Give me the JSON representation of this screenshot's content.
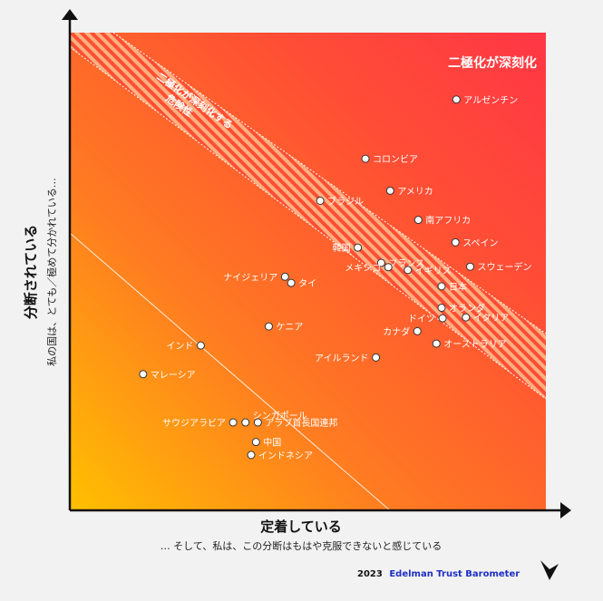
{
  "chart_data": {
    "type": "scatter",
    "title": "",
    "xlabel": "定着している",
    "x_sublabel": "… そして、私は、この分断はもはや克服できないと感じている",
    "ylabel": "分断されている",
    "y_sublabel": "私の国は、とても／極めて分かれている…",
    "xlim": [
      0,
      100
    ],
    "ylim": [
      0,
      100
    ],
    "grid": false,
    "zones": {
      "severe": "二極化が深刻化",
      "band_line1": "二極化が深刻化する",
      "band_line2": "危険性"
    },
    "points": [
      {
        "name": "アルゼンチン",
        "x": 81.2,
        "y": 86.0
      },
      {
        "name": "コロンビア",
        "x": 62.1,
        "y": 73.6
      },
      {
        "name": "アメリカ",
        "x": 67.3,
        "y": 66.9
      },
      {
        "name": "ブラジル",
        "x": 52.6,
        "y": 64.8
      },
      {
        "name": "南アフリカ",
        "x": 73.2,
        "y": 60.8
      },
      {
        "name": "スペイン",
        "x": 81.0,
        "y": 56.1
      },
      {
        "name": "韓国",
        "x": 60.5,
        "y": 55.0
      },
      {
        "name": "フランス",
        "x": 65.4,
        "y": 51.8
      },
      {
        "name": "メキシコ",
        "x": 66.9,
        "y": 50.9
      },
      {
        "name": "スウェーデン",
        "x": 84.1,
        "y": 51.0
      },
      {
        "name": "イギリス",
        "x": 71.0,
        "y": 50.3
      },
      {
        "name": "ナイジェリア",
        "x": 45.2,
        "y": 48.9
      },
      {
        "name": "タイ",
        "x": 46.5,
        "y": 47.6
      },
      {
        "name": "日本",
        "x": 78.1,
        "y": 46.9
      },
      {
        "name": "オランダ",
        "x": 78.1,
        "y": 42.4
      },
      {
        "name": "ドイツ",
        "x": 78.3,
        "y": 40.2
      },
      {
        "name": "イタリア",
        "x": 83.2,
        "y": 40.4
      },
      {
        "name": "ケニア",
        "x": 41.8,
        "y": 38.5
      },
      {
        "name": "カナダ",
        "x": 73.0,
        "y": 37.5
      },
      {
        "name": "インド",
        "x": 27.5,
        "y": 34.5
      },
      {
        "name": "オーストラリア",
        "x": 77.0,
        "y": 34.9
      },
      {
        "name": "アイルランド",
        "x": 64.3,
        "y": 32.0
      },
      {
        "name": "マレーシア",
        "x": 15.4,
        "y": 28.5
      },
      {
        "name": "シンガポール",
        "x": 36.9,
        "y": 18.4
      },
      {
        "name": "サウジアラビア",
        "x": 34.3,
        "y": 18.4
      },
      {
        "name": "アラブ首長国連邦",
        "x": 39.5,
        "y": 18.4
      },
      {
        "name": "中国",
        "x": 39.1,
        "y": 14.3
      },
      {
        "name": "インドネシア",
        "x": 38.1,
        "y": 11.6
      }
    ]
  },
  "footer": {
    "year": "2023",
    "brand": "Edelman Trust Barometer"
  },
  "colors": {
    "red": "#ff3b44",
    "orange": "#ff6a2b",
    "yellow": "#ffc000",
    "text": "#111111",
    "brand_blue": "#1d2ec4"
  }
}
